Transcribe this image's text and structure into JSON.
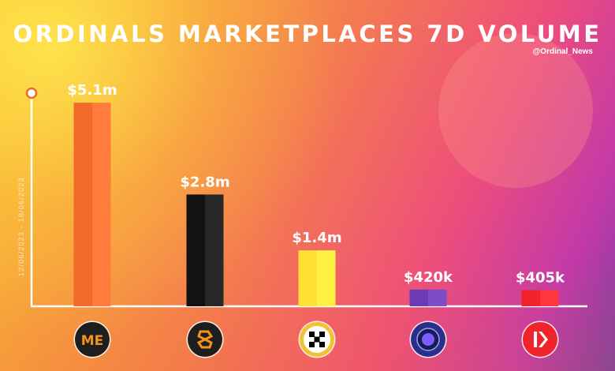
{
  "header": {
    "title": "ORDINALS MARKETPLACES 7D VOLUME",
    "handle": "@Ordinal_News"
  },
  "date_range": "12/06/2023  -  18/06/2023",
  "chart_data": {
    "type": "bar",
    "title": "ORDINALS MARKETPLACES 7D VOLUME",
    "xlabel": "",
    "ylabel": "",
    "ylim": [
      0,
      5.3
    ],
    "categories": [
      "Magic Eden",
      "Ordinals Wallet",
      "OKX",
      "Gamma",
      "Unisat"
    ],
    "values": [
      5.1,
      2.8,
      1.4,
      0.42,
      0.405
    ],
    "data_labels": [
      "$5.1m",
      "$2.8m",
      "$1.4m",
      "$420k",
      "$405k"
    ],
    "colors": [
      "#f26a2a",
      "#121212",
      "#ffe033",
      "#6a3bb5",
      "#f0242a"
    ],
    "grid": false,
    "legend": "none"
  },
  "logos": [
    {
      "icon": "magic-eden-logo-icon",
      "bg": "#1e1e1e",
      "fg": "#f7931a"
    },
    {
      "icon": "ordinals-wallet-logo-icon",
      "bg": "#1e1e1e",
      "fg": "#f7931a"
    },
    {
      "icon": "okx-logo-icon",
      "bg": "#f3c233",
      "fg": "#000000"
    },
    {
      "icon": "gamma-logo-icon",
      "bg": "#2a2f8a",
      "fg": "#7d5cff"
    },
    {
      "icon": "unisat-logo-icon",
      "bg": "#f0242a",
      "fg": "#ffffff"
    }
  ]
}
